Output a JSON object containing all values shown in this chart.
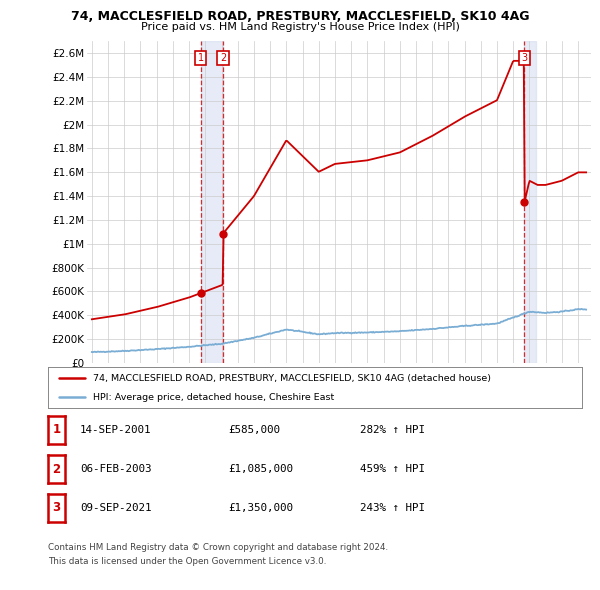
{
  "title": "74, MACCLESFIELD ROAD, PRESTBURY, MACCLESFIELD, SK10 4AG",
  "subtitle": "Price paid vs. HM Land Registry's House Price Index (HPI)",
  "ylim": [
    0,
    2700000
  ],
  "yticks": [
    0,
    200000,
    400000,
    600000,
    800000,
    1000000,
    1200000,
    1400000,
    1600000,
    1800000,
    2000000,
    2200000,
    2400000,
    2600000
  ],
  "ytick_labels": [
    "£0",
    "£200K",
    "£400K",
    "£600K",
    "£800K",
    "£1M",
    "£1.2M",
    "£1.4M",
    "£1.6M",
    "£1.8M",
    "£2M",
    "£2.2M",
    "£2.4M",
    "£2.6M"
  ],
  "xlim_min": 1994.7,
  "xlim_max": 2025.8,
  "sale_years_decimal": [
    2001.706,
    2003.093,
    2021.688
  ],
  "sale_prices": [
    585000,
    1085000,
    1350000
  ],
  "sale_labels": [
    "1",
    "2",
    "3"
  ],
  "property_color": "#cc0000",
  "hpi_color": "#7aadd4",
  "legend_property": "74, MACCLESFIELD ROAD, PRESTBURY, MACCLESFIELD, SK10 4AG (detached house)",
  "legend_hpi": "HPI: Average price, detached house, Cheshire East",
  "table_entries": [
    {
      "label": "1",
      "date": "14-SEP-2001",
      "price": "£585,000",
      "hpi": "282% ↑ HPI"
    },
    {
      "label": "2",
      "date": "06-FEB-2003",
      "price": "£1,085,000",
      "hpi": "459% ↑ HPI"
    },
    {
      "label": "3",
      "date": "09-SEP-2021",
      "price": "£1,350,000",
      "hpi": "243% ↑ HPI"
    }
  ],
  "footer_line1": "Contains HM Land Registry data © Crown copyright and database right 2024.",
  "footer_line2": "This data is licensed under the Open Government Licence v3.0.",
  "grid_color": "#cccccc",
  "span_color": "#d0d8f0",
  "span_alpha": 0.5
}
